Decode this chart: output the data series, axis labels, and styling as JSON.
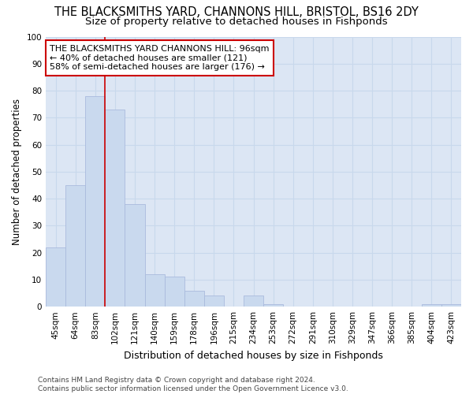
{
  "title": "THE BLACKSMITHS YARD, CHANNONS HILL, BRISTOL, BS16 2DY",
  "subtitle": "Size of property relative to detached houses in Fishponds",
  "xlabel": "Distribution of detached houses by size in Fishponds",
  "ylabel": "Number of detached properties",
  "categories": [
    "45sqm",
    "64sqm",
    "83sqm",
    "102sqm",
    "121sqm",
    "140sqm",
    "159sqm",
    "178sqm",
    "196sqm",
    "215sqm",
    "234sqm",
    "253sqm",
    "272sqm",
    "291sqm",
    "310sqm",
    "329sqm",
    "347sqm",
    "366sqm",
    "385sqm",
    "404sqm",
    "423sqm"
  ],
  "values": [
    22,
    45,
    78,
    73,
    38,
    12,
    11,
    6,
    4,
    0,
    4,
    1,
    0,
    0,
    0,
    0,
    0,
    0,
    0,
    1,
    1
  ],
  "bar_color": "#c9d9ee",
  "bar_edge_color": "#aabbdd",
  "vline_x_idx": 3,
  "vline_color": "#cc0000",
  "annotation_text": "THE BLACKSMITHS YARD CHANNONS HILL: 96sqm\n← 40% of detached houses are smaller (121)\n58% of semi-detached houses are larger (176) →",
  "annotation_box_color": "#ffffff",
  "annotation_box_edge": "#cc0000",
  "ylim": [
    0,
    100
  ],
  "yticks": [
    0,
    10,
    20,
    30,
    40,
    50,
    60,
    70,
    80,
    90,
    100
  ],
  "grid_color": "#c8d8ec",
  "bg_color": "#dce6f4",
  "footer": "Contains HM Land Registry data © Crown copyright and database right 2024.\nContains public sector information licensed under the Open Government Licence v3.0.",
  "title_fontsize": 10.5,
  "subtitle_fontsize": 9.5,
  "xlabel_fontsize": 9,
  "ylabel_fontsize": 8.5,
  "tick_fontsize": 7.5,
  "annot_fontsize": 8,
  "footer_fontsize": 6.5
}
